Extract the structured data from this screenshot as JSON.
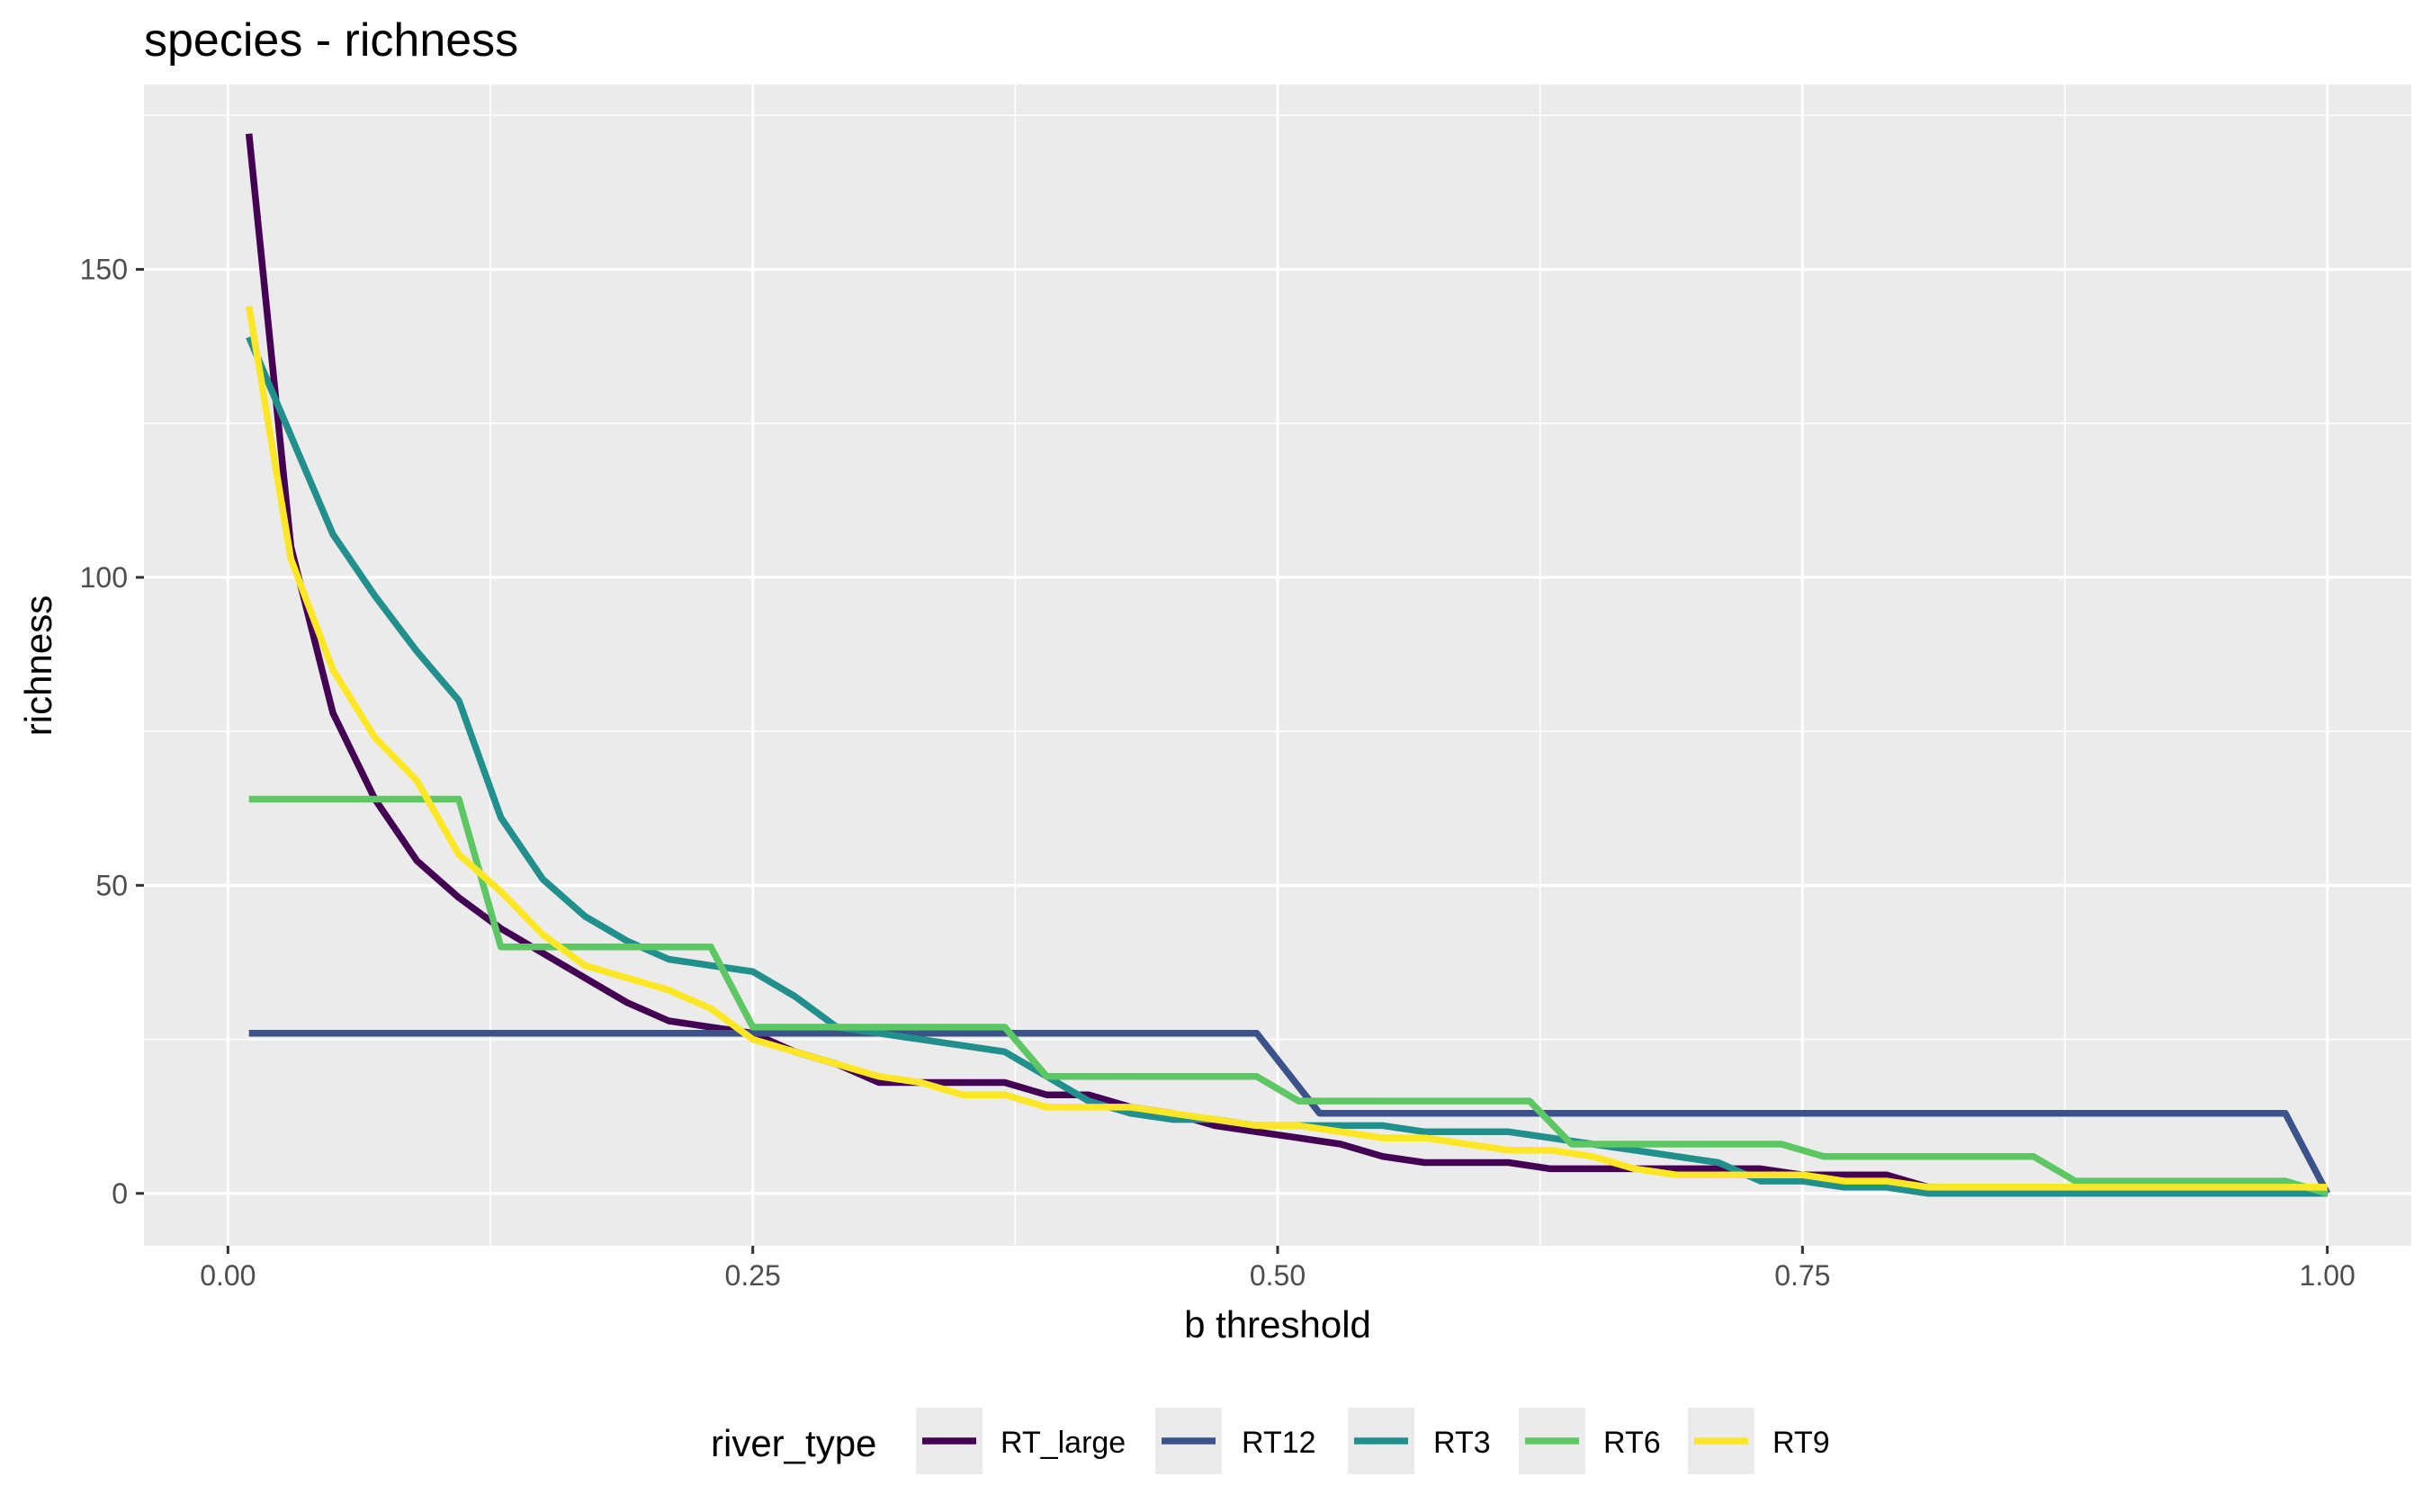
{
  "chart_data": {
    "type": "line",
    "title": "species -  richness",
    "xlabel": "b threshold",
    "ylabel": "richness",
    "xlim": [
      -0.04,
      1.04
    ],
    "ylim": [
      -8.5,
      180
    ],
    "xticks": [
      0,
      0.25,
      0.5,
      0.75,
      1
    ],
    "xtick_labels": [
      "0.00",
      "0.25",
      "0.50",
      "0.75",
      "1.00"
    ],
    "yticks": [
      0,
      50,
      100,
      150
    ],
    "ytick_labels": [
      "0",
      "50",
      "100",
      "150"
    ],
    "grid": true,
    "legend": {
      "title": "river_type",
      "position": "bottom"
    },
    "series": [
      {
        "name": "RT_large",
        "color": "#440154",
        "x": [
          0.01,
          0.03,
          0.05,
          0.07,
          0.09,
          0.11,
          0.13,
          0.15,
          0.17,
          0.19,
          0.21,
          0.23,
          0.25,
          0.27,
          0.29,
          0.31,
          0.33,
          0.35,
          0.37,
          0.39,
          0.41,
          0.43,
          0.45,
          0.47,
          0.49,
          0.51,
          0.53,
          0.55,
          0.57,
          0.59,
          0.61,
          0.63,
          0.65,
          0.67,
          0.69,
          0.71,
          0.73,
          0.75,
          0.77,
          0.79,
          0.81,
          1.0
        ],
        "y": [
          172,
          105,
          78,
          64,
          54,
          48,
          43,
          39,
          35,
          31,
          28,
          27,
          26,
          23,
          21,
          18,
          18,
          18,
          18,
          16,
          16,
          14,
          13,
          11,
          10,
          9,
          8,
          6,
          5,
          5,
          5,
          4,
          4,
          4,
          4,
          4,
          4,
          3,
          3,
          3,
          1,
          0
        ]
      },
      {
        "name": "RT12",
        "color": "#3B528B",
        "x": [
          0.01,
          0.49,
          0.52,
          0.98,
          1.0
        ],
        "y": [
          26,
          26,
          13,
          13,
          0
        ]
      },
      {
        "name": "RT3",
        "color": "#21908C",
        "x": [
          0.01,
          0.03,
          0.05,
          0.07,
          0.09,
          0.11,
          0.13,
          0.15,
          0.17,
          0.19,
          0.21,
          0.23,
          0.25,
          0.27,
          0.29,
          0.31,
          0.33,
          0.35,
          0.37,
          0.39,
          0.41,
          0.43,
          0.45,
          0.47,
          0.49,
          0.51,
          0.53,
          0.55,
          0.57,
          0.59,
          0.61,
          0.63,
          0.65,
          0.67,
          0.69,
          0.71,
          0.73,
          0.75,
          0.77,
          0.79,
          0.81,
          1.0
        ],
        "y": [
          139,
          123,
          107,
          97,
          88,
          80,
          61,
          51,
          45,
          41,
          38,
          37,
          36,
          32,
          27,
          26,
          25,
          24,
          23,
          19,
          15,
          13,
          12,
          12,
          11,
          11,
          11,
          11,
          10,
          10,
          10,
          9,
          8,
          7,
          6,
          5,
          2,
          2,
          1,
          1,
          0,
          0
        ]
      },
      {
        "name": "RT6",
        "color": "#5DC863",
        "x": [
          0.01,
          0.11,
          0.13,
          0.23,
          0.25,
          0.37,
          0.39,
          0.49,
          0.51,
          0.62,
          0.64,
          0.74,
          0.76,
          0.86,
          0.88,
          0.98,
          1.0
        ],
        "y": [
          64,
          64,
          40,
          40,
          27,
          27,
          19,
          19,
          15,
          15,
          8,
          8,
          6,
          6,
          2,
          2,
          0
        ]
      },
      {
        "name": "RT9",
        "color": "#FDE725",
        "x": [
          0.01,
          0.03,
          0.05,
          0.07,
          0.09,
          0.11,
          0.13,
          0.15,
          0.17,
          0.19,
          0.21,
          0.23,
          0.25,
          0.27,
          0.29,
          0.31,
          0.33,
          0.35,
          0.37,
          0.39,
          0.41,
          0.43,
          0.45,
          0.47,
          0.49,
          0.51,
          0.53,
          0.55,
          0.57,
          0.59,
          0.61,
          0.63,
          0.65,
          0.67,
          0.69,
          0.71,
          0.73,
          0.75,
          0.77,
          0.79,
          0.81,
          1.0
        ],
        "y": [
          144,
          103,
          85,
          74,
          67,
          55,
          49,
          42,
          37,
          35,
          33,
          30,
          25,
          23,
          21,
          19,
          18,
          16,
          16,
          14,
          14,
          14,
          13,
          12,
          11,
          11,
          10,
          9,
          9,
          8,
          7,
          7,
          6,
          4,
          3,
          3,
          3,
          3,
          2,
          2,
          1,
          1
        ]
      }
    ]
  }
}
